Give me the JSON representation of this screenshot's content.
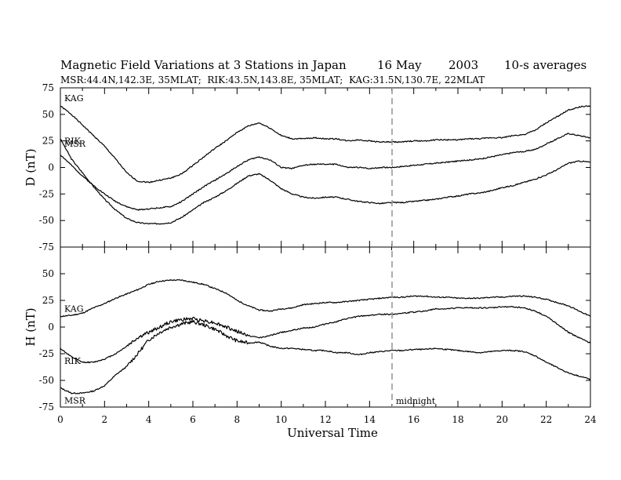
{
  "header": {
    "title": "Magnetic Field Variations at 3 Stations in Japan",
    "date_day": "16 May",
    "date_year": "2003",
    "averages": "10-s averages",
    "stations_line": "MSR:44.4N,142.3E, 35MLAT;  RIK:43.5N,143.8E, 35MLAT;  KAG:31.5N,130.7E, 22MLAT"
  },
  "annotation": {
    "midnight": "midnight",
    "midnight_ut": 15
  },
  "chart_data": [
    {
      "type": "line",
      "panel": "D",
      "ylabel": "D (nT)",
      "xlabel": "",
      "xlim": [
        0,
        24
      ],
      "ylim": [
        -75,
        75
      ],
      "yticks": [
        "75",
        "50",
        "25",
        "0",
        "-25",
        "-50",
        "-75"
      ],
      "xticks": [],
      "grid": false,
      "x": [
        0,
        0.5,
        1,
        1.5,
        2,
        2.5,
        3,
        3.5,
        4,
        4.5,
        5,
        5.5,
        6,
        6.5,
        7,
        7.5,
        8,
        8.5,
        9,
        9.5,
        10,
        10.5,
        11,
        11.5,
        12,
        12.5,
        13,
        13.5,
        14,
        14.5,
        15,
        15.5,
        16,
        16.5,
        17,
        17.5,
        18,
        18.5,
        19,
        19.5,
        20,
        20.5,
        21,
        21.5,
        22,
        22.5,
        23,
        23.5,
        24
      ],
      "series": [
        {
          "name": "KAG",
          "values": [
            58,
            50,
            40,
            30,
            20,
            8,
            -5,
            -13,
            -14,
            -12,
            -10,
            -6,
            2,
            10,
            18,
            25,
            33,
            39,
            42,
            37,
            30,
            27,
            27,
            28,
            27,
            27,
            25,
            26,
            25,
            24,
            24,
            24,
            25,
            25,
            26,
            26,
            26,
            27,
            27,
            28,
            28,
            30,
            31,
            35,
            42,
            48,
            54,
            57,
            58
          ]
        },
        {
          "name": "RIK",
          "values": [
            12,
            2,
            -8,
            -17,
            -25,
            -32,
            -37,
            -40,
            -39,
            -38,
            -37,
            -32,
            -25,
            -18,
            -12,
            -6,
            1,
            7,
            10,
            7,
            0,
            -1,
            2,
            3,
            3,
            3,
            0,
            0,
            -1,
            0,
            0,
            1,
            2,
            3,
            4,
            5,
            6,
            7,
            8,
            10,
            12,
            14,
            15,
            17,
            22,
            27,
            32,
            30,
            28
          ]
        },
        {
          "name": "MSR",
          "values": [
            27,
            8,
            -5,
            -18,
            -30,
            -40,
            -48,
            -52,
            -53,
            -53,
            -52,
            -47,
            -40,
            -33,
            -28,
            -22,
            -15,
            -8,
            -6,
            -12,
            -20,
            -25,
            -28,
            -29,
            -28,
            -28,
            -30,
            -32,
            -33,
            -34,
            -33,
            -33,
            -32,
            -31,
            -30,
            -28,
            -27,
            -25,
            -24,
            -22,
            -19,
            -17,
            -14,
            -11,
            -7,
            -2,
            4,
            6,
            5
          ]
        }
      ]
    },
    {
      "type": "line",
      "panel": "H",
      "ylabel": "H (nT)",
      "xlabel": "Universal Time",
      "xlim": [
        0,
        24
      ],
      "ylim": [
        -75,
        75
      ],
      "yticks": [
        "",
        "50",
        "25",
        "0",
        "-25",
        "-50",
        "-75"
      ],
      "xticks": [
        "0",
        "2",
        "4",
        "6",
        "8",
        "10",
        "12",
        "14",
        "16",
        "18",
        "20",
        "22",
        "24"
      ],
      "grid": false,
      "x": [
        0,
        0.5,
        1,
        1.5,
        2,
        2.5,
        3,
        3.5,
        4,
        4.5,
        5,
        5.5,
        6,
        6.5,
        7,
        7.5,
        8,
        8.5,
        9,
        9.5,
        10,
        10.5,
        11,
        11.5,
        12,
        12.5,
        13,
        13.5,
        14,
        14.5,
        15,
        15.5,
        16,
        16.5,
        17,
        17.5,
        18,
        18.5,
        19,
        19.5,
        20,
        20.5,
        21,
        21.5,
        22,
        22.5,
        23,
        23.5,
        24
      ],
      "series": [
        {
          "name": "KAG",
          "values": [
            10,
            11,
            13,
            18,
            22,
            27,
            31,
            35,
            40,
            43,
            44,
            44,
            42,
            40,
            36,
            32,
            25,
            20,
            16,
            15,
            17,
            18,
            21,
            22,
            23,
            23,
            24,
            25,
            26,
            27,
            28,
            28,
            29,
            29,
            28,
            28,
            27,
            27,
            27,
            28,
            28,
            29,
            29,
            28,
            26,
            23,
            20,
            15,
            10
          ]
        },
        {
          "name": "RIK",
          "values": [
            -20,
            -28,
            -33,
            -33,
            -30,
            -25,
            -18,
            -10,
            -5,
            0,
            5,
            7,
            8,
            6,
            4,
            0,
            -4,
            -8,
            -10,
            -8,
            -5,
            -3,
            -1,
            0,
            3,
            5,
            8,
            10,
            11,
            12,
            12,
            13,
            14,
            15,
            17,
            17,
            18,
            18,
            18,
            18,
            19,
            19,
            18,
            15,
            10,
            3,
            -5,
            -10,
            -15
          ]
        },
        {
          "name": "MSR",
          "values": [
            -57,
            -62,
            -62,
            -60,
            -55,
            -45,
            -37,
            -25,
            -12,
            -5,
            0,
            3,
            5,
            2,
            -2,
            -8,
            -13,
            -15,
            -14,
            -18,
            -20,
            -20,
            -21,
            -22,
            -22,
            -24,
            -24,
            -26,
            -24,
            -23,
            -22,
            -22,
            -21,
            -21,
            -20,
            -21,
            -22,
            -23,
            -24,
            -23,
            -22,
            -22,
            -23,
            -27,
            -33,
            -38,
            -43,
            -46,
            -49
          ]
        }
      ]
    }
  ]
}
